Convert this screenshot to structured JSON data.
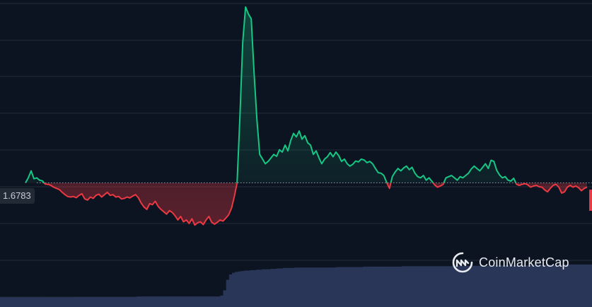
{
  "chart_data": {
    "type": "area",
    "reference_value": 1.6783,
    "reference_label": "1.6783",
    "colors": {
      "up": "#16c784",
      "down": "#ea3943",
      "background": "#0d1421",
      "grid": "#232c3a",
      "volume": "#2a3658"
    },
    "grid": true,
    "ylim": [
      1.16,
      2.46
    ],
    "series": [
      {
        "values": [
          1.6783,
          1.7,
          1.73,
          1.696,
          1.7,
          1.69,
          1.687,
          1.673,
          1.672,
          1.668,
          1.66,
          1.655,
          1.65,
          1.638,
          1.628,
          1.62,
          1.618,
          1.62,
          1.615,
          1.625,
          1.632,
          1.61,
          1.605,
          1.618,
          1.612,
          1.625,
          1.63,
          1.618,
          1.628,
          1.638,
          1.625,
          1.628,
          1.618,
          1.62,
          1.61,
          1.612,
          1.618,
          1.614,
          1.622,
          1.628,
          1.615,
          1.592,
          1.575,
          1.565,
          1.59,
          1.585,
          1.6,
          1.578,
          1.565,
          1.555,
          1.545,
          1.56,
          1.552,
          1.538,
          1.52,
          1.535,
          1.512,
          1.52,
          1.505,
          1.525,
          1.498,
          1.508,
          1.512,
          1.5,
          1.52,
          1.535,
          1.51,
          1.502,
          1.51,
          1.52,
          1.515,
          1.528,
          1.542,
          1.57,
          1.62,
          1.6783,
          1.96,
          2.28,
          2.43,
          2.4,
          2.38,
          2.15,
          1.95,
          1.8,
          1.78,
          1.76,
          1.77,
          1.785,
          1.8,
          1.792,
          1.82,
          1.81,
          1.84,
          1.815,
          1.86,
          1.89,
          1.875,
          1.9,
          1.865,
          1.88,
          1.85,
          1.84,
          1.8,
          1.815,
          1.785,
          1.76,
          1.78,
          1.79,
          1.808,
          1.79,
          1.81,
          1.795,
          1.77,
          1.78,
          1.76,
          1.75,
          1.758,
          1.772,
          1.768,
          1.78,
          1.776,
          1.765,
          1.77,
          1.76,
          1.74,
          1.722,
          1.72,
          1.71,
          1.68,
          1.655,
          1.705,
          1.725,
          1.74,
          1.73,
          1.742,
          1.75,
          1.735,
          1.745,
          1.72,
          1.705,
          1.7,
          1.71,
          1.69,
          1.7,
          1.685,
          1.67,
          1.66,
          1.665,
          1.672,
          1.7,
          1.705,
          1.71,
          1.7,
          1.69,
          1.705,
          1.7,
          1.71,
          1.72,
          1.738,
          1.75,
          1.74,
          1.73,
          1.745,
          1.76,
          1.74,
          1.775,
          1.77,
          1.732,
          1.712,
          1.7,
          1.705,
          1.69,
          1.686,
          1.698,
          1.672,
          1.668,
          1.672,
          1.675,
          1.67,
          1.66,
          1.665,
          1.668,
          1.662,
          1.66,
          1.648,
          1.64,
          1.655,
          1.668,
          1.672,
          1.66,
          1.635,
          1.64,
          1.66,
          1.668,
          1.66,
          1.665,
          1.658,
          1.645,
          1.655,
          1.66
        ]
      }
    ],
    "volume": [
      0.22,
      0.22,
      0.22,
      0.22,
      0.22,
      0.22,
      0.22,
      0.22,
      0.22,
      0.22,
      0.22,
      0.22,
      0.22,
      0.22,
      0.22,
      0.22,
      0.22,
      0.22,
      0.22,
      0.22,
      0.22,
      0.22,
      0.22,
      0.22,
      0.22,
      0.23,
      0.23,
      0.23,
      0.23,
      0.23,
      0.23,
      0.23,
      0.23,
      0.23,
      0.23,
      0.23,
      0.23,
      0.23,
      0.23,
      0.23,
      0.23,
      0.23,
      0.23,
      0.23,
      0.23,
      0.23,
      0.24,
      0.24,
      0.24,
      0.24,
      0.24,
      0.24,
      0.24,
      0.24,
      0.24,
      0.24,
      0.24,
      0.24,
      0.24,
      0.24,
      0.24,
      0.24,
      0.24,
      0.24,
      0.24,
      0.24,
      0.24,
      0.24,
      0.24,
      0.24,
      0.24,
      0.24,
      0.24,
      0.24,
      0.26,
      0.38,
      0.62,
      0.74,
      0.78,
      0.8,
      0.81,
      0.82,
      0.83,
      0.83,
      0.84,
      0.84,
      0.85,
      0.85,
      0.86,
      0.86,
      0.86,
      0.87,
      0.87,
      0.88,
      0.88,
      0.89,
      0.89,
      0.89,
      0.89,
      0.9,
      0.9,
      0.9,
      0.9,
      0.9,
      0.9,
      0.9,
      0.9,
      0.9,
      0.9,
      0.9,
      0.9,
      0.9,
      0.9,
      0.91,
      0.91,
      0.91,
      0.91,
      0.91,
      0.91,
      0.91,
      0.91,
      0.91,
      0.92,
      0.92,
      0.92,
      0.92,
      0.92,
      0.92,
      0.92,
      0.92,
      0.92,
      0.92,
      0.92,
      0.92,
      0.92,
      0.93,
      0.93,
      0.93,
      0.93,
      0.93,
      0.93,
      0.93,
      0.93,
      0.93,
      0.93,
      0.93,
      0.93,
      0.93,
      0.93,
      0.93,
      0.93,
      0.93,
      0.94,
      0.94,
      0.94,
      0.94,
      0.94,
      0.94,
      0.94,
      0.94,
      0.94,
      0.94,
      0.94,
      0.94,
      0.94,
      0.95,
      0.95,
      0.95,
      0.95,
      0.95,
      0.95,
      0.95,
      0.95,
      0.95,
      0.95,
      0.95,
      0.95,
      0.95,
      0.96,
      0.96,
      0.96,
      0.96,
      0.96,
      0.96,
      0.96,
      0.96,
      0.96,
      0.96,
      0.96,
      0.96,
      0.97,
      0.97,
      0.97,
      0.97,
      0.97,
      0.97,
      0.97,
      0.97,
      0.97
    ]
  },
  "brand": {
    "name": "CoinMarketCap",
    "logo_icon": "coinmarketcap-logo-icon"
  }
}
